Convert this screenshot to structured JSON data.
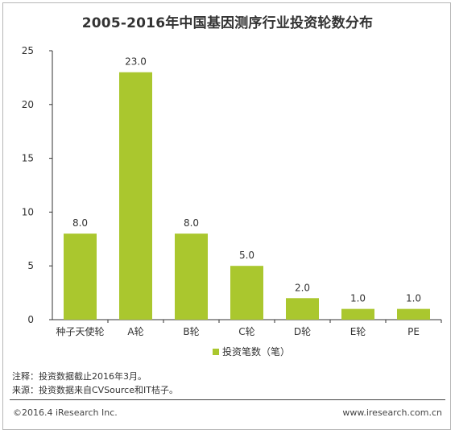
{
  "chart_data": {
    "type": "bar",
    "title": "2005-2016年中国基因测序行业投资轮数分布",
    "categories": [
      "种子天使轮",
      "A轮",
      "B轮",
      "C轮",
      "D轮",
      "E轮",
      "PE"
    ],
    "series": [
      {
        "name": "投资笔数（笔）",
        "values": [
          8.0,
          23.0,
          8.0,
          5.0,
          2.0,
          1.0,
          1.0
        ]
      }
    ],
    "value_labels": [
      "8.0",
      "23.0",
      "8.0",
      "5.0",
      "2.0",
      "1.0",
      "1.0"
    ],
    "yticks": [
      "0",
      "5",
      "10",
      "15",
      "20",
      "25"
    ],
    "ylim": [
      0,
      25
    ],
    "bar_color": "#aac72e",
    "grid": false,
    "legend_position": "bottom"
  },
  "notes": {
    "note1": "注释：投资数据截止2016年3月。",
    "note2": "来源：投资数据来自CVSource和IT桔子。"
  },
  "footer": {
    "left": "©2016.4 iResearch Inc.",
    "right": "www.iresearch.com.cn"
  }
}
